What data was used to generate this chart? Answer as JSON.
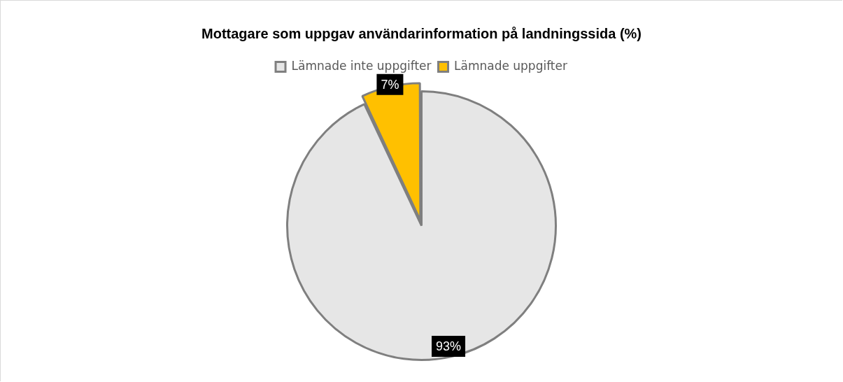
{
  "chart_data": {
    "type": "pie",
    "title": "Mottagare som uppgav användarinformation på landningssida (%)",
    "categories": [
      "Lämnade inte uppgifter",
      "Lämnade uppgifter"
    ],
    "values": [
      93,
      7
    ],
    "colors": [
      "#e6e6e6",
      "#ffc000"
    ],
    "value_labels": [
      "93%",
      "7%"
    ],
    "legend": "top"
  }
}
